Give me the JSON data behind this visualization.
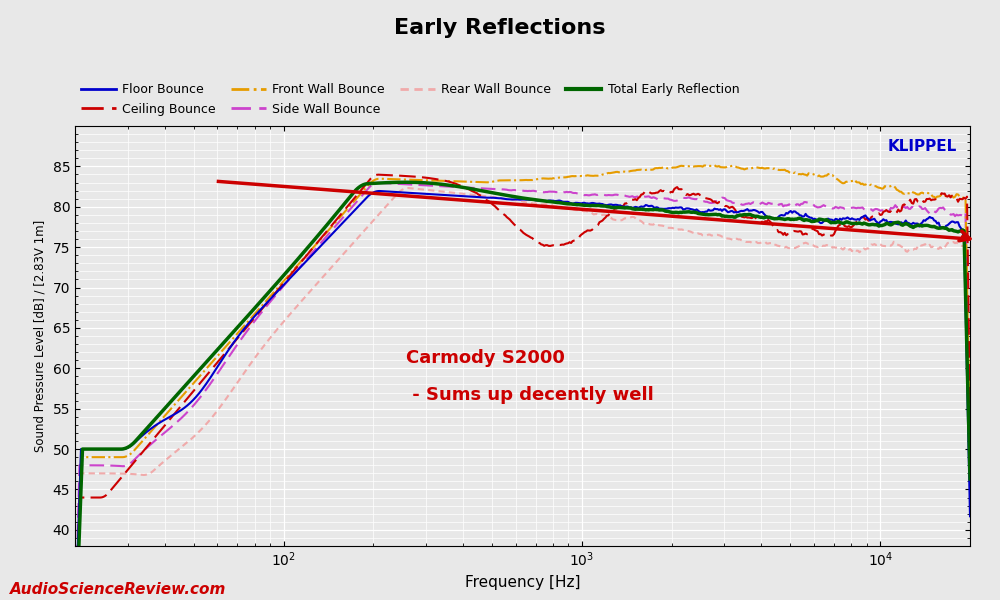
{
  "title": "Early Reflections",
  "xlabel": "Frequency [Hz]",
  "ylabel": "Sound Pressure Level [dB] / [2.83V 1m]",
  "xlim": [
    20,
    20000
  ],
  "ylim": [
    38,
    90
  ],
  "yticks": [
    40,
    45,
    50,
    55,
    60,
    65,
    70,
    75,
    80,
    85
  ],
  "annotation_text1": "Carmody S2000",
  "annotation_text2": " - Sums up decently well",
  "annotation_color": "#cc0000",
  "klippel_color": "#0000cc",
  "asr_color": "#cc0000",
  "background_color": "#e8e8e8",
  "plot_bg_color": "#e8e8e8",
  "grid_color": "#ffffff",
  "series": {
    "floor_bounce": {
      "label": "Floor Bounce",
      "color": "#0000cc",
      "lw": 1.5
    },
    "ceiling_bounce": {
      "label": "Ceiling Bounce",
      "color": "#cc0000",
      "lw": 1.5
    },
    "front_wall_bounce": {
      "label": "Front Wall Bounce",
      "color": "#e69c00",
      "lw": 1.5
    },
    "side_wall_bounce": {
      "label": "Side Wall Bounce",
      "color": "#cc44cc",
      "lw": 1.5
    },
    "rear_wall_bounce": {
      "label": "Rear Wall Bounce",
      "color": "#f0aaaa",
      "lw": 1.5
    },
    "total_early": {
      "label": "Total Early Reflection",
      "color": "#006600",
      "lw": 2.5
    },
    "ceiling_trend": {
      "label": "_nolegend_",
      "color": "#cc0000",
      "lw": 2.5
    }
  }
}
